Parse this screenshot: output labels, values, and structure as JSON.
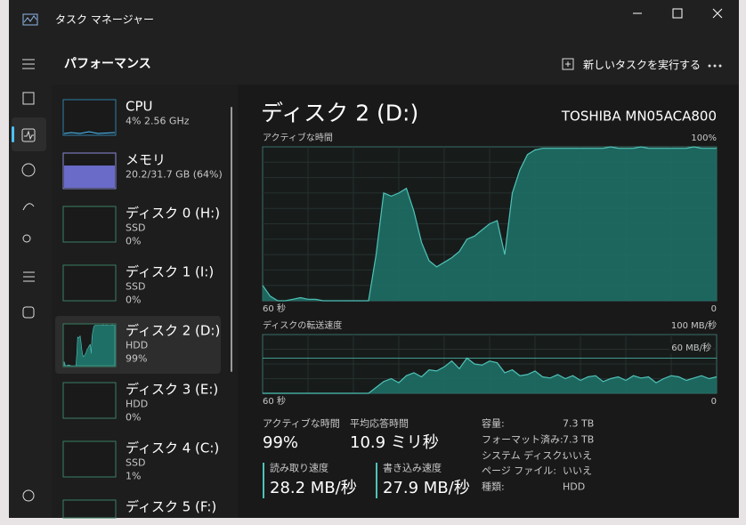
{
  "window": {
    "title": "タスク マネージャー"
  },
  "header": {
    "title": "パフォーマンス",
    "new_task": "新しいタスクを実行する"
  },
  "devices": [
    {
      "name": "CPU",
      "line1": "4%  2.56 GHz"
    },
    {
      "name": "メモリ",
      "line1": "20.2/31.7 GB (64%)"
    },
    {
      "name": "ディスク 0 (H:)",
      "line1": "SSD",
      "line2": "0%"
    },
    {
      "name": "ディスク 1 (I:)",
      "line1": "SSD",
      "line2": "0%"
    },
    {
      "name": "ディスク 2 (D:)",
      "line1": "HDD",
      "line2": "99%"
    },
    {
      "name": "ディスク 3 (E:)",
      "line1": "HDD",
      "line2": "0%"
    },
    {
      "name": "ディスク 4 (C:)",
      "line1": "SSD",
      "line2": "1%"
    },
    {
      "name": "ディスク 5 (F:)"
    }
  ],
  "detail": {
    "title": "ディスク 2 (D:)",
    "model": "TOSHIBA MN05ACA800",
    "active_graph": {
      "label": "アクティブな時間",
      "top_label": "100%",
      "left_label": "60 秒",
      "right_label": "0",
      "ylim": [
        0,
        100
      ],
      "values": [
        10,
        3,
        0,
        0,
        1,
        2,
        1,
        1,
        0,
        0,
        0,
        0,
        0,
        0,
        0,
        30,
        70,
        68,
        70,
        73,
        58,
        38,
        26,
        22,
        25,
        28,
        32,
        40,
        42,
        46,
        50,
        52,
        30,
        70,
        85,
        95,
        98,
        99,
        99,
        99,
        99,
        99,
        99,
        99,
        99,
        99,
        100,
        99,
        99,
        99,
        100,
        99,
        99,
        99,
        99,
        99,
        99,
        100,
        99,
        99,
        99
      ]
    },
    "transfer_graph": {
      "label": "ディスクの転送速度",
      "top_label": "100 MB/秒",
      "left_label": "60 秒",
      "right_label": "0",
      "ylim": [
        0,
        100
      ],
      "marker": {
        "value": 60,
        "label": "60 MB/秒"
      },
      "values": [
        0,
        0,
        0,
        0,
        0,
        0,
        0,
        0,
        0,
        0,
        0,
        0,
        0,
        0,
        0,
        10,
        20,
        25,
        18,
        30,
        35,
        28,
        40,
        38,
        45,
        55,
        42,
        60,
        50,
        48,
        55,
        52,
        35,
        40,
        30,
        32,
        38,
        28,
        26,
        32,
        25,
        30,
        22,
        28,
        30,
        20,
        25,
        28,
        22,
        30,
        26,
        28,
        18,
        25,
        30,
        28,
        22,
        26,
        30,
        25,
        28
      ]
    },
    "stats": [
      {
        "label": "アクティブな時間",
        "value": "99%"
      },
      {
        "label": "平均応答時間",
        "value": "10.9 ミリ秒"
      },
      {
        "label": "読み取り速度",
        "value": "28.2 MB/秒"
      },
      {
        "label": "書き込み速度",
        "value": "27.9 MB/秒"
      }
    ],
    "properties": [
      {
        "label": "容量:",
        "value": "7.3 TB"
      },
      {
        "label": "フォーマット済み:",
        "value": "7.3 TB"
      },
      {
        "label": "システム ディスク:",
        "value": "いいえ"
      },
      {
        "label": "ページ ファイル:",
        "value": "いいえ"
      },
      {
        "label": "種類:",
        "value": "HDD"
      }
    ]
  }
}
